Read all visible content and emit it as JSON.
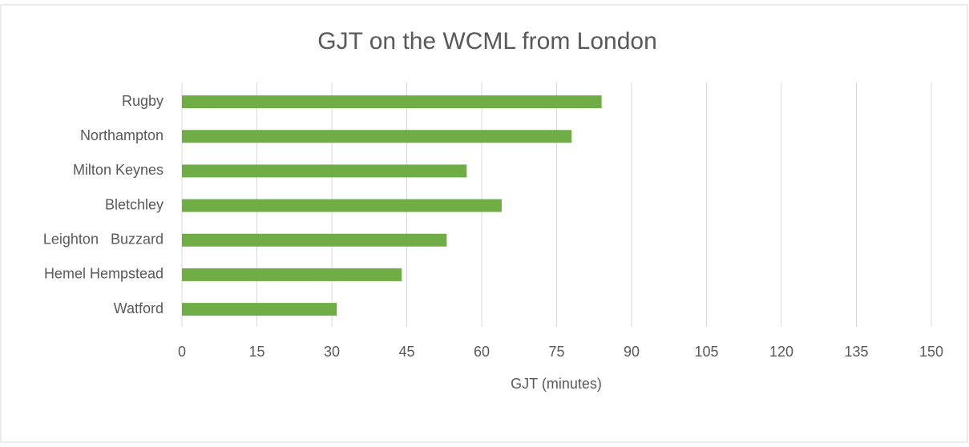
{
  "chart_data": {
    "type": "bar",
    "orientation": "horizontal",
    "title": "GJT on the WCML from London",
    "x_label": "GJT (minutes)",
    "categories": [
      "Rugby",
      "Northampton",
      "Milton Keynes",
      "Bletchley",
      "Leighton   Buzzard",
      "Hemel Hempstead",
      "Watford"
    ],
    "values": [
      84,
      78,
      57,
      64,
      53,
      44,
      31
    ],
    "color": "#70ad47",
    "xlim": [
      0,
      150
    ],
    "xticks": [
      0,
      15,
      30,
      45,
      60,
      75,
      90,
      105,
      120,
      135,
      150
    ],
    "grid": true
  }
}
